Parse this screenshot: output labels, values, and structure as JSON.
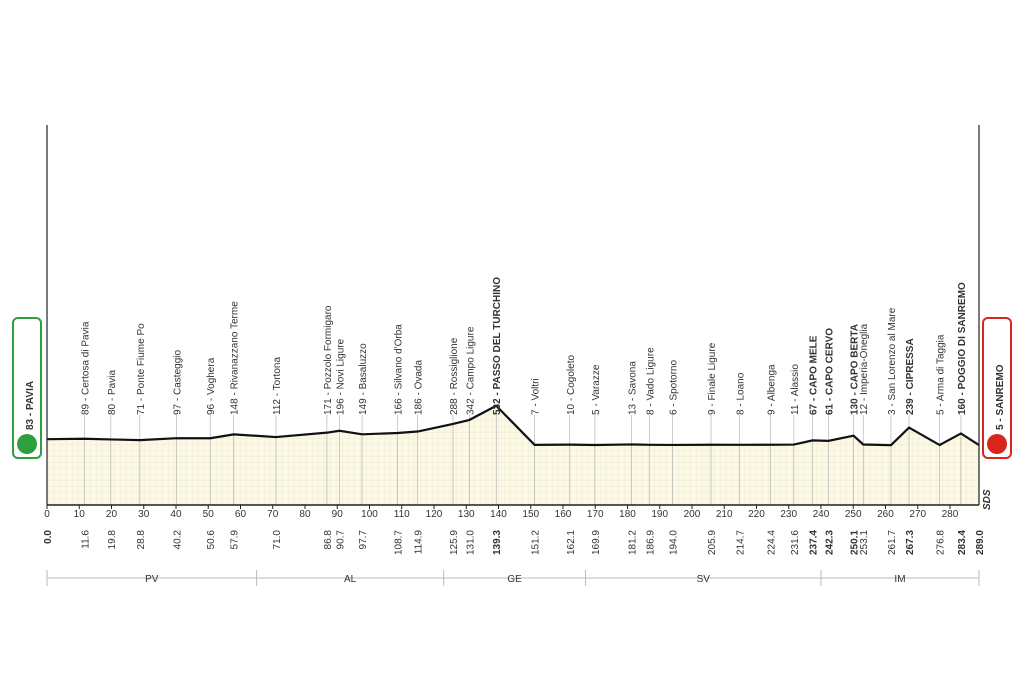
{
  "chart_data": {
    "type": "elevation-profile",
    "x": [
      0.0,
      11.6,
      19.8,
      28.8,
      40.2,
      50.6,
      57.9,
      71.0,
      86.8,
      90.7,
      97.7,
      108.7,
      114.9,
      125.9,
      131.0,
      139.3,
      151.2,
      162.1,
      169.9,
      181.2,
      186.9,
      194.0,
      205.9,
      214.7,
      224.4,
      231.6,
      237.4,
      242.3,
      250.1,
      253.1,
      261.7,
      267.3,
      276.8,
      283.4,
      289.0
    ],
    "x_labels": [
      "0.0",
      "11.6",
      "19.8",
      "28.8",
      "40.2",
      "50.6",
      "57.9",
      "71.0",
      "86.8",
      "90.7",
      "97.7",
      "108.7",
      "114.9",
      "125.9",
      "131.0",
      "139.3",
      "151.2",
      "162.1",
      "169.9",
      "181.2",
      "186.9",
      "194.0",
      "205.9",
      "214.7",
      "224.4",
      "231.6",
      "237.4",
      "242.3",
      "250.1",
      "253.1",
      "261.7",
      "267.3",
      "276.8",
      "283.4",
      "289.0"
    ],
    "values": [
      83,
      89,
      80,
      71,
      97,
      96,
      148,
      112,
      171,
      196,
      149,
      166,
      186,
      288,
      342,
      532,
      7,
      10,
      5,
      13,
      8,
      6,
      9,
      8,
      9,
      11,
      67,
      61,
      130,
      12,
      3,
      239,
      5,
      160,
      5
    ],
    "value_labels": [
      "83 - PAVIA",
      "89 - Certosa di Pavia",
      "80 - Pavia",
      "71 - Ponte Fiume Po",
      "97 - Casteggio",
      "96 - Voghera",
      "148 - Rivanazzano Terme",
      "112 - Tortona",
      "171 - Pozzolo Formigaro",
      "196 - Novi Ligure",
      "149 - Basaluzzo",
      "166 - Silvano d'Orba",
      "186 - Ovada",
      "288 - Rossiglione",
      "342 - Campo Ligure",
      "532 - PASSO DEL TURCHINO",
      "7 - Voltri",
      "10 - Cogoleto",
      "5 - Varazze",
      "13 - Savona",
      "8 - Vado Ligure",
      "6 - Spotorno",
      "9 - Finale Ligure",
      "8 - Loano",
      "9 - Albenga",
      "11 - Alassio",
      "67 - CAPO MELE",
      "61 - CAPO CERVO",
      "130 - CAPO BERTA",
      "12 - Imperia-Oneglia",
      "3 - San Lorenzo al Mare",
      "239 - CIPRESSA",
      "5 - Arma di Taggia",
      "160 - POGGIO DI SANREMO",
      "5 - SANREMO"
    ],
    "highlight": [
      15,
      26,
      27,
      28,
      31,
      33
    ],
    "xlim": [
      0,
      289
    ],
    "ylim": [
      -800,
      4300
    ],
    "xticks": [
      0,
      10,
      20,
      30,
      40,
      50,
      60,
      70,
      80,
      90,
      100,
      110,
      120,
      130,
      140,
      150,
      160,
      170,
      180,
      190,
      200,
      210,
      220,
      230,
      240,
      250,
      260,
      270,
      280
    ],
    "regions": [
      {
        "label": "PV",
        "start": 0,
        "end": 65
      },
      {
        "label": "AL",
        "start": 65,
        "end": 123
      },
      {
        "label": "GE",
        "start": 123,
        "end": 167
      },
      {
        "label": "SV",
        "start": 167,
        "end": 240
      },
      {
        "label": "IM",
        "start": 240,
        "end": 289
      }
    ],
    "start_color": "#2e9e3e",
    "end_color": "#d9261c",
    "area_color": "#fbf8e6",
    "logo": "SDS"
  }
}
